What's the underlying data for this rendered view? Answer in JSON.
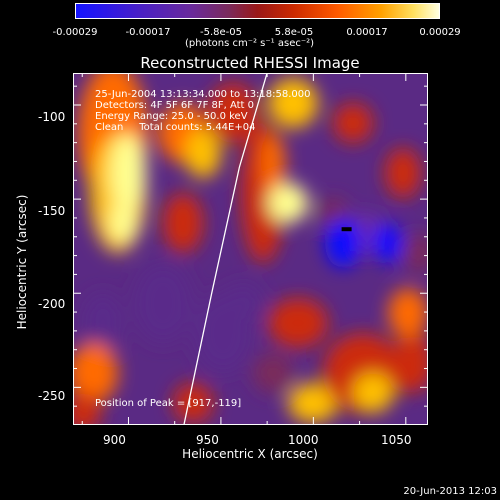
{
  "colorbar": {
    "ticks": [
      "-0.00029",
      "-0.00017",
      "-5.8e-05",
      "5.8e-05",
      "0.00017",
      "0.00029"
    ],
    "units": "(photons cm⁻² s⁻¹ asec⁻²)",
    "range": [
      -0.00029,
      0.00029
    ]
  },
  "chart_data": {
    "type": "heatmap",
    "title": "Reconstructed RHESSI Image",
    "xlabel": "Heliocentric X (arcsec)",
    "ylabel": "Heliocentric Y (arcsec)",
    "xlim": [
      870,
      1062
    ],
    "ylim": [
      -270,
      -83
    ],
    "x_ticks": [
      "900",
      "950",
      "1000",
      "1050"
    ],
    "y_ticks": [
      "-100",
      "-150",
      "-200",
      "-250"
    ],
    "info_lines": [
      "25-Jun-2004 13:13:34.000 to 13:18:58.000",
      "Detectors: 4F 5F 6F 7F 8F, Att 0",
      "Energy Range: 25.0 - 50.0 keV",
      "Clean     Total counts: 5.44E+04"
    ],
    "peak_label": "Position of Peak = [917,-119]",
    "peak_position": [
      917,
      -119
    ],
    "min_marker": [
      1018,
      -166
    ],
    "limb_x": [
      930,
      945,
      960,
      975
    ],
    "limb_y": [
      -270,
      -200,
      -133,
      -83
    ],
    "colormap": [
      "#1010ff",
      "#6a2aa8",
      "#5a2a8a",
      "#7a2a5a",
      "#cc2a10",
      "#ff6a00",
      "#ffc000",
      "#ffff90"
    ]
  },
  "footer": {
    "timestamp": "20-Jun-2013 12:03"
  }
}
